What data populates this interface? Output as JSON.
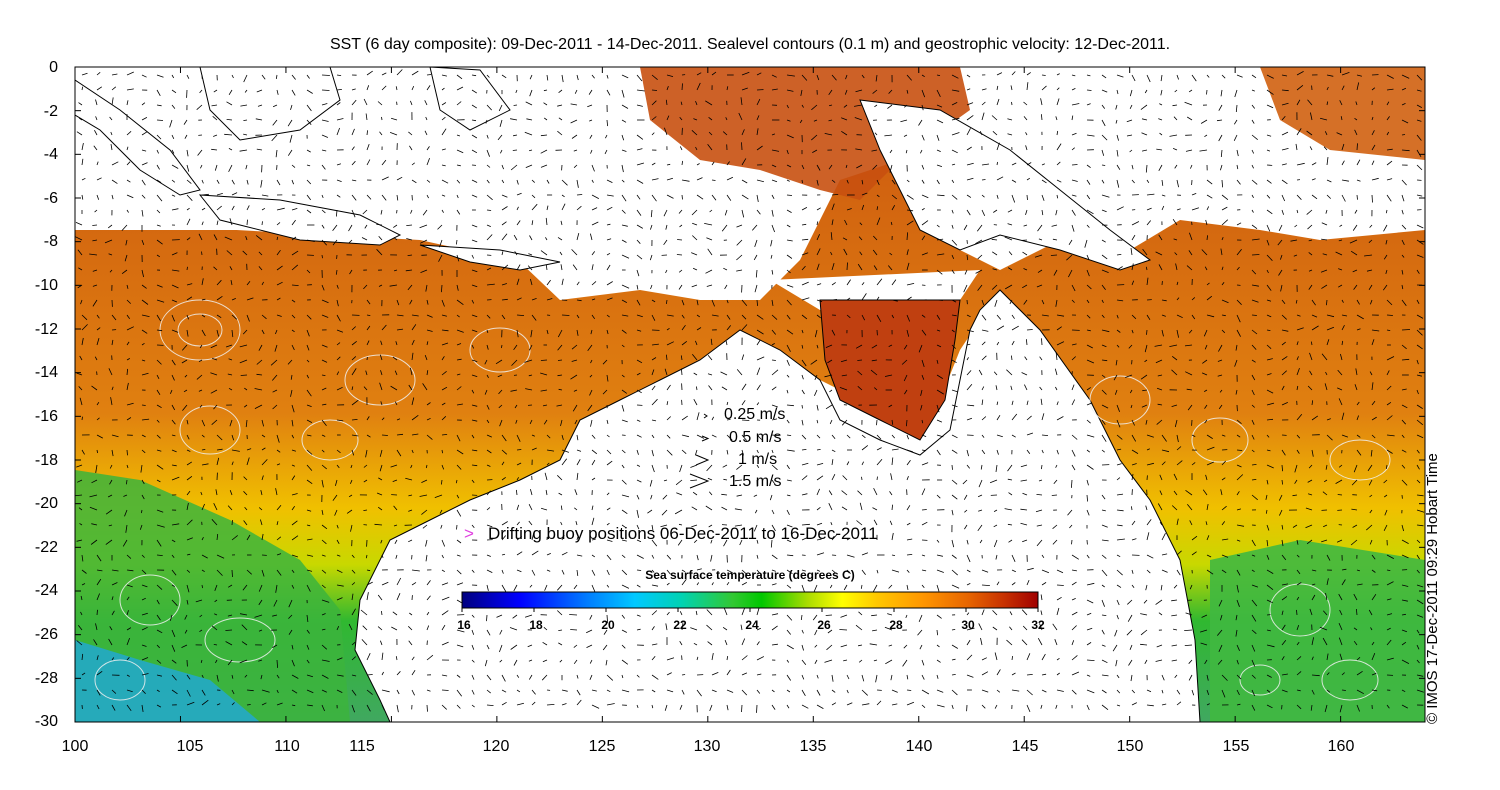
{
  "title": "SST (6 day composite): 09-Dec-2011 - 14-Dec-2011. Sealevel contours (0.1 m) and geostrophic velocity: 12-Dec-2011.",
  "credit": "© IMOS 17-Dec-2011 09:29 Hobart Time",
  "axes": {
    "x_ticks": [
      "100",
      "105",
      "110",
      "115",
      "120",
      "125",
      "130",
      "135",
      "140",
      "145",
      "150",
      "155",
      "160"
    ],
    "y_ticks": [
      "0",
      "-2",
      "-4",
      "-6",
      "-8",
      "-10",
      "-12",
      "-14",
      "-16",
      "-18",
      "-20",
      "-22",
      "-24",
      "-26",
      "-28",
      "-30"
    ],
    "lon_range": [
      100,
      164
    ],
    "lat_range": [
      -30,
      0
    ]
  },
  "speed_legend": [
    {
      "label": "0.25 m/s",
      "speed": 0.25
    },
    {
      "label": "0.5 m/s",
      "speed": 0.5
    },
    {
      "label": "1 m/s",
      "speed": 1
    },
    {
      "label": "1.5 m/s",
      "speed": 1.5
    }
  ],
  "buoy_legend": {
    "mark": ">",
    "label": "Drifting buoy positions 06-Dec-2011 to 16-Dec-2011",
    "color": "#e040e0"
  },
  "colorbar": {
    "title": "Sea surface temperature (degrees C)",
    "ticks": [
      "16",
      "18",
      "20",
      "22",
      "24",
      "26",
      "28",
      "30",
      "32"
    ],
    "range": [
      16,
      32
    ],
    "colors": [
      "#00007f",
      "#0000ff",
      "#007fff",
      "#00c8ff",
      "#00d2b4",
      "#32c832",
      "#00c800",
      "#aadc00",
      "#ffff00",
      "#ffc800",
      "#ff9600",
      "#e66400",
      "#c83200",
      "#a00000"
    ]
  },
  "colors": {
    "land": "#ffffff",
    "coast": "#000000",
    "contour": "#f0f0f0",
    "arrow": "#000000"
  }
}
